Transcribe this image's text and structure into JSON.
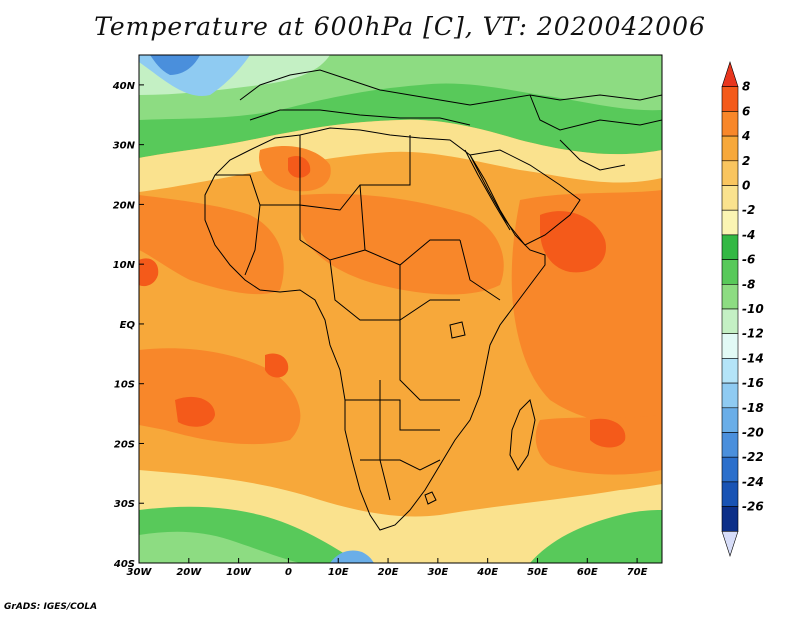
{
  "title": "Temperature at 600hPa [C], VT: 2020042006",
  "credit": "GrADS: IGES/COLA",
  "map": {
    "lon_range": [
      -30,
      75
    ],
    "lat_range": [
      -40,
      45
    ],
    "x_ticks": [
      {
        "lon": -30,
        "label": "30W"
      },
      {
        "lon": -20,
        "label": "20W"
      },
      {
        "lon": -10,
        "label": "10W"
      },
      {
        "lon": 0,
        "label": "0"
      },
      {
        "lon": 10,
        "label": "10E"
      },
      {
        "lon": 20,
        "label": "20E"
      },
      {
        "lon": 30,
        "label": "30E"
      },
      {
        "lon": 40,
        "label": "40E"
      },
      {
        "lon": 50,
        "label": "50E"
      },
      {
        "lon": 60,
        "label": "60E"
      },
      {
        "lon": 70,
        "label": "70E"
      }
    ],
    "y_ticks": [
      {
        "lat": 40,
        "label": "40N"
      },
      {
        "lat": 30,
        "label": "30N"
      },
      {
        "lat": 20,
        "label": "20N"
      },
      {
        "lat": 10,
        "label": "10N"
      },
      {
        "lat": 0,
        "label": "EQ"
      },
      {
        "lat": -10,
        "label": "10S"
      },
      {
        "lat": -20,
        "label": "20S"
      },
      {
        "lat": -30,
        "label": "30S"
      },
      {
        "lat": -40,
        "label": "40S"
      }
    ]
  },
  "colorbar": {
    "levels": [
      "8",
      "6",
      "4",
      "2",
      "0",
      "-2",
      "-4",
      "-6",
      "-8",
      "-10",
      "-12",
      "-14",
      "-16",
      "-18",
      "-20",
      "-22",
      "-24",
      "-26"
    ],
    "colors": [
      "#e8361e",
      "#f45a1a",
      "#f8872a",
      "#f7a83a",
      "#f9c55f",
      "#fae28e",
      "#fbf5b3",
      "#33b844",
      "#58c95a",
      "#8ddc82",
      "#c4f0c4",
      "#e2faf6",
      "#b4e4f8",
      "#8fcbf2",
      "#6aaee8",
      "#4a8fdc",
      "#2b6fcc",
      "#1853b4",
      "#0c2f88",
      "#d7ddf8"
    ]
  },
  "regions": {
    "cool_band_color": "#58c95a",
    "warm_core_color": "#f45a1a",
    "cold_pocket_color": "#6aaee8"
  }
}
